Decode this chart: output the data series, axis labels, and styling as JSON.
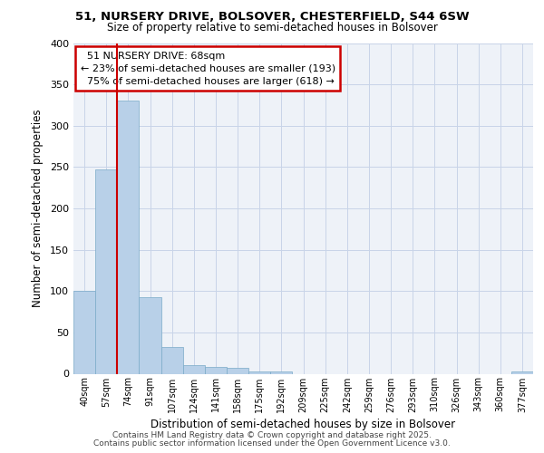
{
  "title1": "51, NURSERY DRIVE, BOLSOVER, CHESTERFIELD, S44 6SW",
  "title2": "Size of property relative to semi-detached houses in Bolsover",
  "xlabel": "Distribution of semi-detached houses by size in Bolsover",
  "ylabel": "Number of semi-detached properties",
  "categories": [
    "40sqm",
    "57sqm",
    "74sqm",
    "91sqm",
    "107sqm",
    "124sqm",
    "141sqm",
    "158sqm",
    "175sqm",
    "192sqm",
    "209sqm",
    "225sqm",
    "242sqm",
    "259sqm",
    "276sqm",
    "293sqm",
    "310sqm",
    "326sqm",
    "343sqm",
    "360sqm",
    "377sqm"
  ],
  "values": [
    100,
    247,
    330,
    93,
    32,
    10,
    8,
    7,
    3,
    3,
    0,
    0,
    0,
    0,
    0,
    0,
    0,
    0,
    0,
    0,
    3
  ],
  "bar_color": "#b8d0e8",
  "bar_edge_color": "#7aaac8",
  "property_label": "51 NURSERY DRIVE: 68sqm",
  "smaller_pct": "23%",
  "smaller_n": "193",
  "larger_pct": "75%",
  "larger_n": "618",
  "annotation_box_color": "#cc0000",
  "vline_color": "#cc0000",
  "grid_color": "#c8d4e8",
  "bg_color": "#eef2f8",
  "ylim": [
    0,
    400
  ],
  "yticks": [
    0,
    50,
    100,
    150,
    200,
    250,
    300,
    350,
    400
  ],
  "footer1": "Contains HM Land Registry data © Crown copyright and database right 2025.",
  "footer2": "Contains public sector information licensed under the Open Government Licence v3.0."
}
